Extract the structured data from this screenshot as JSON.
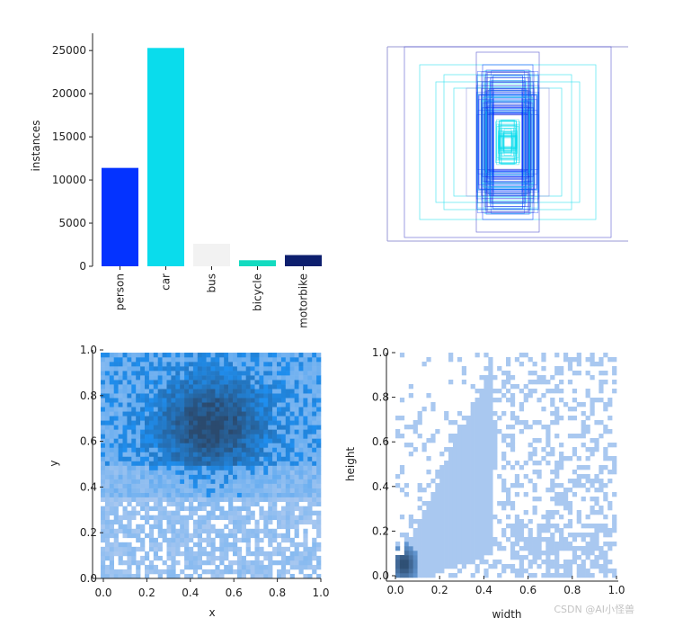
{
  "chart_data": [
    {
      "type": "bar",
      "ylabel": "instances",
      "categories": [
        "person",
        "car",
        "bus",
        "bicycle",
        "motorbike"
      ],
      "values": [
        11400,
        25300,
        2600,
        700,
        1300
      ],
      "colors": [
        "#0433ff",
        "#0adcec",
        "#f2f2f2",
        "#13dbc0",
        "#0d1f6e"
      ],
      "ylim": [
        0,
        27000
      ],
      "yticks": [
        "0",
        "5000",
        "10000",
        "15000",
        "20000",
        "25000"
      ]
    },
    {
      "type": "scatter",
      "note_kind": "bounding-box-overlay",
      "colors": [
        "#0433ff",
        "#0adcec",
        "#3b3bc6",
        "#8b8bd8"
      ]
    },
    {
      "type": "heatmap",
      "xlabel": "x",
      "ylabel": "y",
      "xlim": [
        0,
        1
      ],
      "ylim": [
        0,
        1
      ],
      "xticks": [
        "0.0",
        "0.2",
        "0.4",
        "0.6",
        "0.8",
        "1.0"
      ],
      "yticks": [
        "0.0",
        "0.2",
        "0.4",
        "0.6",
        "0.8",
        "1.0"
      ],
      "colors": [
        "#a9c8f0",
        "#1f8ff0",
        "#2b4a6e"
      ]
    },
    {
      "type": "heatmap",
      "xlabel": "width",
      "ylabel": "height",
      "xlim": [
        0,
        1
      ],
      "ylim": [
        0,
        1
      ],
      "xticks": [
        "0.0",
        "0.2",
        "0.4",
        "0.6",
        "0.8",
        "1.0"
      ],
      "yticks": [
        "0.0",
        "0.2",
        "0.4",
        "0.6",
        "0.8",
        "1.0"
      ],
      "colors": [
        "#a9c8f0",
        "#6fa8e8",
        "#2b4a6e"
      ]
    }
  ],
  "watermark": "CSDN @AI小怪兽"
}
